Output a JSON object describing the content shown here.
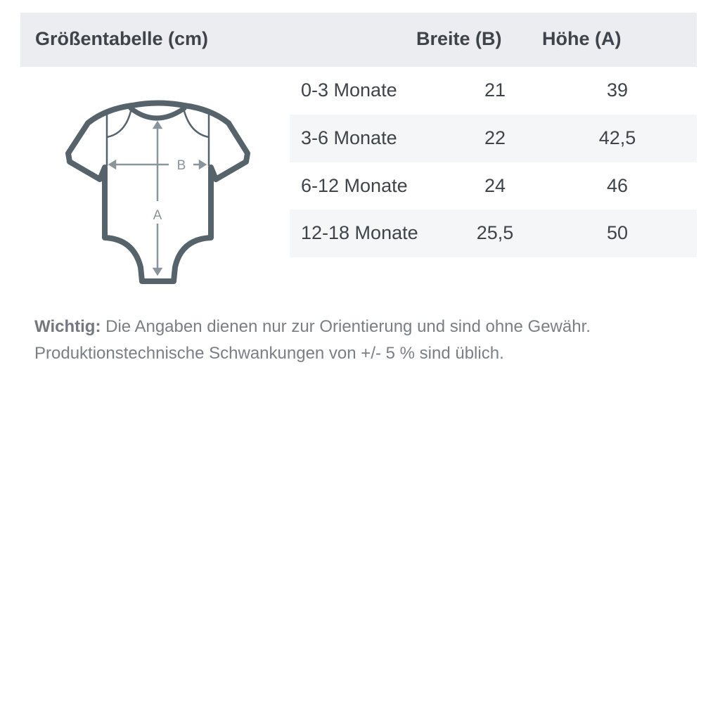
{
  "table": {
    "title": "Größentabelle (cm)",
    "columns": [
      "Breite (B)",
      "Höhe (A)"
    ],
    "rows": [
      {
        "size": "0-3 Monate",
        "width": "21",
        "height": "39"
      },
      {
        "size": "3-6 Monate",
        "width": "22",
        "height": "42,5"
      },
      {
        "size": "6-12 Monate",
        "width": "24",
        "height": "46"
      },
      {
        "size": "12-18 Monate",
        "width": "25,5",
        "height": "50"
      }
    ]
  },
  "diagram": {
    "label_b": "B",
    "label_a": "A",
    "outline_color": "#56636b",
    "arrow_color": "#8a949b"
  },
  "note": {
    "label": "Wichtig:",
    "line1": "Die Angaben dienen nur zur Orientierung und sind ohne Gewähr.",
    "line2": "Produktionstechnische Schwankungen von +/- 5 % sind üblich."
  }
}
